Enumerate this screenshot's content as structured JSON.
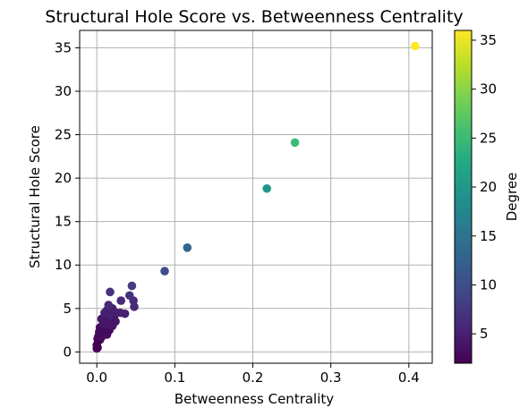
{
  "chart_data": {
    "type": "scatter",
    "title": "Structural Hole Score vs. Betweenness Centrality",
    "xlabel": "Betweenness Centrality",
    "ylabel": "Structural Hole Score",
    "colorbar_label": "Degree",
    "xlim": [
      -0.022,
      0.43
    ],
    "ylim": [
      -1.3,
      37
    ],
    "xticks": [
      {
        "value": 0.0,
        "label": "0.0"
      },
      {
        "value": 0.1,
        "label": "0.1"
      },
      {
        "value": 0.2,
        "label": "0.2"
      },
      {
        "value": 0.3,
        "label": "0.3"
      },
      {
        "value": 0.4,
        "label": "0.4"
      }
    ],
    "yticks": [
      {
        "value": 0,
        "label": "0"
      },
      {
        "value": 5,
        "label": "5"
      },
      {
        "value": 10,
        "label": "10"
      },
      {
        "value": 15,
        "label": "15"
      },
      {
        "value": 20,
        "label": "20"
      },
      {
        "value": 25,
        "label": "25"
      },
      {
        "value": 30,
        "label": "30"
      },
      {
        "value": 35,
        "label": "35"
      }
    ],
    "colorbar_range": [
      2,
      36
    ],
    "colorbar_ticks": [
      {
        "value": 5,
        "label": "5"
      },
      {
        "value": 10,
        "label": "10"
      },
      {
        "value": 15,
        "label": "15"
      },
      {
        "value": 20,
        "label": "20"
      },
      {
        "value": 25,
        "label": "25"
      },
      {
        "value": 30,
        "label": "30"
      },
      {
        "value": 35,
        "label": "35"
      }
    ],
    "colormap": "viridis",
    "grid": true,
    "points": [
      {
        "x": 0.408,
        "y": 35.2,
        "degree": 36
      },
      {
        "x": 0.254,
        "y": 24.1,
        "degree": 25
      },
      {
        "x": 0.218,
        "y": 18.8,
        "degree": 20
      },
      {
        "x": 0.116,
        "y": 12.0,
        "degree": 13
      },
      {
        "x": 0.087,
        "y": 9.3,
        "degree": 10
      },
      {
        "x": 0.045,
        "y": 7.6,
        "degree": 8
      },
      {
        "x": 0.017,
        "y": 6.9,
        "degree": 7
      },
      {
        "x": 0.042,
        "y": 6.5,
        "degree": 7
      },
      {
        "x": 0.031,
        "y": 5.9,
        "degree": 6
      },
      {
        "x": 0.047,
        "y": 5.9,
        "degree": 6
      },
      {
        "x": 0.015,
        "y": 5.4,
        "degree": 6
      },
      {
        "x": 0.048,
        "y": 5.2,
        "degree": 6
      },
      {
        "x": 0.02,
        "y": 5.0,
        "degree": 5
      },
      {
        "x": 0.013,
        "y": 4.8,
        "degree": 5
      },
      {
        "x": 0.01,
        "y": 4.5,
        "degree": 5
      },
      {
        "x": 0.025,
        "y": 4.5,
        "degree": 5
      },
      {
        "x": 0.03,
        "y": 4.5,
        "degree": 5
      },
      {
        "x": 0.036,
        "y": 4.4,
        "degree": 5
      },
      {
        "x": 0.016,
        "y": 4.2,
        "degree": 5
      },
      {
        "x": 0.022,
        "y": 4.0,
        "degree": 4
      },
      {
        "x": 0.006,
        "y": 3.8,
        "degree": 4
      },
      {
        "x": 0.012,
        "y": 3.8,
        "degree": 4
      },
      {
        "x": 0.018,
        "y": 3.6,
        "degree": 4
      },
      {
        "x": 0.024,
        "y": 3.5,
        "degree": 4
      },
      {
        "x": 0.008,
        "y": 3.2,
        "degree": 4
      },
      {
        "x": 0.014,
        "y": 3.1,
        "degree": 4
      },
      {
        "x": 0.02,
        "y": 3.0,
        "degree": 4
      },
      {
        "x": 0.004,
        "y": 2.8,
        "degree": 3
      },
      {
        "x": 0.01,
        "y": 2.7,
        "degree": 3
      },
      {
        "x": 0.016,
        "y": 2.5,
        "degree": 3
      },
      {
        "x": 0.003,
        "y": 2.3,
        "degree": 3
      },
      {
        "x": 0.008,
        "y": 2.2,
        "degree": 3
      },
      {
        "x": 0.013,
        "y": 2.0,
        "degree": 3
      },
      {
        "x": 0.002,
        "y": 1.8,
        "degree": 3
      },
      {
        "x": 0.006,
        "y": 1.7,
        "degree": 3
      },
      {
        "x": 0.001,
        "y": 1.5,
        "degree": 2
      },
      {
        "x": 0.004,
        "y": 1.4,
        "degree": 2
      },
      {
        "x": 0.0,
        "y": 0.8,
        "degree": 2
      },
      {
        "x": 0.001,
        "y": 0.5,
        "degree": 2
      },
      {
        "x": 0.0,
        "y": 0.4,
        "degree": 2
      }
    ]
  }
}
